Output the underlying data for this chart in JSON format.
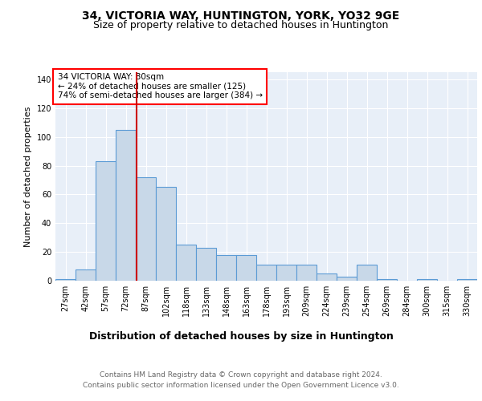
{
  "title": "34, VICTORIA WAY, HUNTINGTON, YORK, YO32 9GE",
  "subtitle": "Size of property relative to detached houses in Huntington",
  "xlabel": "Distribution of detached houses by size in Huntington",
  "ylabel": "Number of detached properties",
  "categories": [
    "27sqm",
    "42sqm",
    "57sqm",
    "72sqm",
    "87sqm",
    "102sqm",
    "118sqm",
    "133sqm",
    "148sqm",
    "163sqm",
    "178sqm",
    "193sqm",
    "209sqm",
    "224sqm",
    "239sqm",
    "254sqm",
    "269sqm",
    "284sqm",
    "300sqm",
    "315sqm",
    "330sqm"
  ],
  "values": [
    1,
    8,
    83,
    105,
    72,
    65,
    25,
    23,
    18,
    18,
    11,
    11,
    11,
    5,
    3,
    11,
    1,
    0,
    1,
    0,
    1
  ],
  "bar_color": "#c8d8e8",
  "bar_edgecolor": "#5b9bd5",
  "bar_linewidth": 0.8,
  "red_line_color": "#cc0000",
  "annotation_text": "34 VICTORIA WAY: 80sqm\n← 24% of detached houses are smaller (125)\n74% of semi-detached houses are larger (384) →",
  "ylim": [
    0,
    145
  ],
  "yticks": [
    0,
    20,
    40,
    60,
    80,
    100,
    120,
    140
  ],
  "footer_line1": "Contains HM Land Registry data © Crown copyright and database right 2024.",
  "footer_line2": "Contains public sector information licensed under the Open Government Licence v3.0.",
  "bg_color": "#e8eff8",
  "title_fontsize": 10,
  "subtitle_fontsize": 9,
  "xlabel_fontsize": 9,
  "ylabel_fontsize": 8,
  "tick_fontsize": 7,
  "annotation_fontsize": 7.5,
  "footer_fontsize": 6.5
}
